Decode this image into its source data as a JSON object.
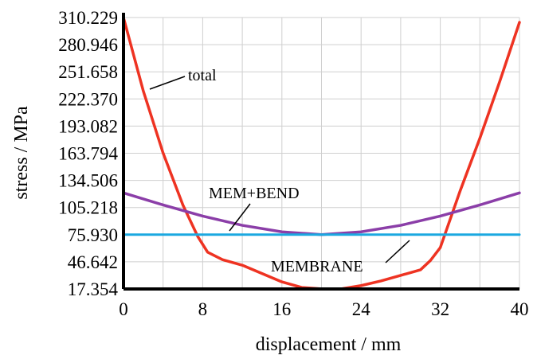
{
  "chart_data": {
    "type": "line",
    "xlabel": "displacement / mm",
    "ylabel": "stress / MPa",
    "xlim": [
      0,
      40
    ],
    "ylim": [
      17.354,
      310.229
    ],
    "grid": true,
    "x_ticks": [
      "0",
      "8",
      "16",
      "24",
      "32",
      "40"
    ],
    "y_ticks": [
      "310.229",
      "280.946",
      "251.658",
      "222.370",
      "193.082",
      "163.794",
      "134.506",
      "105.218",
      "75.930",
      "46.642",
      "17.354"
    ],
    "colors": {
      "total": "#ee3322",
      "mem_bend": "#8b3ea8",
      "membrane": "#1ba8e0",
      "grid": "#cfcfcf"
    },
    "series": [
      {
        "key": "total",
        "x": [
          0,
          2,
          4,
          6,
          7.5,
          8.5,
          10,
          12,
          14,
          16,
          18,
          20,
          22,
          24,
          26,
          28,
          30,
          31,
          32,
          34,
          36,
          38,
          40
        ],
        "values": [
          310.2,
          231,
          164,
          108,
          74,
          57,
          49,
          43,
          34,
          25,
          19,
          17.5,
          17.5,
          21,
          26,
          32,
          38,
          48,
          62,
          123,
          180,
          241,
          305
        ]
      },
      {
        "key": "mem_bend",
        "x": [
          0,
          4,
          8,
          12,
          16,
          20,
          24,
          28,
          32,
          36,
          40
        ],
        "values": [
          121,
          108,
          96,
          86,
          79,
          76,
          79,
          86,
          96,
          108,
          121
        ]
      },
      {
        "key": "membrane",
        "x": [
          0,
          40
        ],
        "values": [
          76,
          76
        ]
      }
    ],
    "annotations": {
      "total": "total",
      "mem_bend": "MEM+BEND",
      "membrane": "MEMBRANE"
    }
  }
}
